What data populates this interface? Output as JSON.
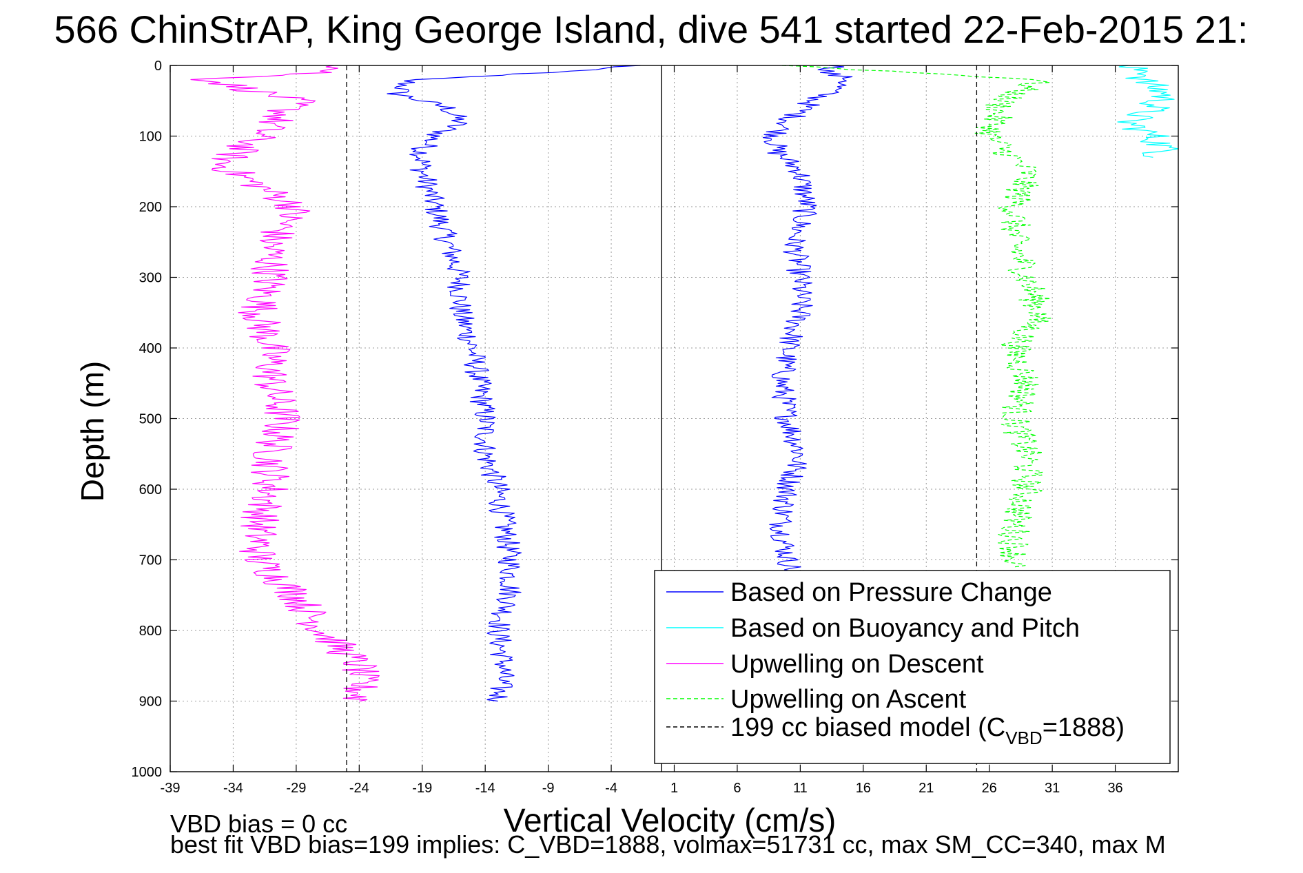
{
  "chart_data": {
    "type": "line",
    "title": "566 ChinStrAP, King George Island, dive 541 started 22-Feb-2015 21:",
    "xlabel": "Vertical Velocity (cm/s)",
    "ylabel": "Depth (m)",
    "xlim": [
      -39,
      41
    ],
    "ylim": [
      1000,
      0
    ],
    "y_reversed": true,
    "grid": true,
    "grid_style": "dotted",
    "x_ticks": [
      -39,
      -34,
      -29,
      -24,
      -19,
      -14,
      -9,
      -4,
      1,
      6,
      11,
      16,
      21,
      26,
      31,
      36
    ],
    "x_tick_labels": [
      "-39",
      "-34",
      "-29",
      "-24",
      "-19",
      "-14",
      "-9",
      "-4",
      "1",
      "6",
      "11",
      "16",
      "21",
      "26",
      "31",
      "36"
    ],
    "y_ticks": [
      0,
      100,
      200,
      300,
      400,
      500,
      600,
      700,
      800,
      900,
      1000
    ],
    "y_tick_labels": [
      "0",
      "100",
      "200",
      "300",
      "400",
      "500",
      "600",
      "700",
      "800",
      "900",
      "1000"
    ],
    "zero_line_x": 0,
    "legend": {
      "position": "bottom-right",
      "entries": [
        {
          "label": "Based on Pressure Change",
          "color": "#0000ff",
          "style": "solid"
        },
        {
          "label": "Based on Buoyancy and Pitch",
          "color": "#00ffff",
          "style": "solid"
        },
        {
          "label": "Upwelling on Descent",
          "color": "#ff00ff",
          "style": "solid"
        },
        {
          "label": "Upwelling on Ascent",
          "color": "#00ff00",
          "style": "dashed"
        },
        {
          "label_main": "199 cc biased model (C",
          "label_sub": "VBD",
          "label_tail": "=1888)",
          "color": "#000000",
          "style": "dashed"
        }
      ]
    },
    "series": [
      {
        "name": "Based on Pressure Change",
        "segment": "descent",
        "color": "#0000ff",
        "style": "solid",
        "depth": [
          0,
          10,
          20,
          40,
          60,
          80,
          100,
          120,
          150,
          200,
          250,
          300,
          350,
          400,
          450,
          500,
          550,
          600,
          650,
          700,
          750,
          800,
          850,
          900
        ],
        "x": [
          -2,
          -9,
          -20,
          -21,
          -17,
          -16,
          -18,
          -19,
          -19,
          -18,
          -17,
          -16,
          -16,
          -15,
          -14.5,
          -14,
          -14,
          -13,
          -12.5,
          -12,
          -12,
          -13,
          -12.5,
          -13
        ]
      },
      {
        "name": "Based on Pressure Change",
        "segment": "ascent",
        "color": "#0000ff",
        "style": "solid",
        "depth": [
          0,
          10,
          20,
          50,
          80,
          100,
          120,
          150,
          200,
          250,
          300,
          350,
          400,
          450,
          500,
          550,
          600,
          650,
          700,
          720
        ],
        "x": [
          14,
          13,
          15,
          12,
          10,
          9,
          9,
          11,
          11.5,
          10.5,
          11,
          11,
          10,
          9.5,
          10,
          11,
          10,
          9.5,
          10,
          10.5
        ]
      },
      {
        "name": "Based on Buoyancy and Pitch",
        "color": "#00ffff",
        "style": "solid",
        "depth": [
          0,
          10,
          20,
          40,
          60,
          80,
          100,
          120,
          130
        ],
        "x": [
          36,
          39,
          38,
          40,
          39,
          37,
          39,
          40,
          39
        ]
      },
      {
        "name": "Upwelling on Descent",
        "color": "#ff00ff",
        "style": "solid",
        "depth": [
          0,
          10,
          20,
          50,
          100,
          140,
          200,
          250,
          300,
          350,
          400,
          450,
          500,
          550,
          600,
          650,
          700,
          750,
          800,
          850,
          900
        ],
        "x": [
          -25,
          -27,
          -36,
          -29,
          -32,
          -35,
          -29,
          -31,
          -31,
          -32,
          -31,
          -31,
          -30,
          -31,
          -31,
          -32,
          -32,
          -29,
          -27,
          -24,
          -24
        ]
      },
      {
        "name": "Upwelling on Ascent",
        "color": "#00ff00",
        "style": "dashed",
        "depth": [
          0,
          20,
          50,
          100,
          150,
          200,
          250,
          300,
          350,
          400,
          450,
          500,
          550,
          600,
          650,
          700,
          710
        ],
        "x": [
          10,
          30,
          27,
          26,
          29,
          28,
          28,
          29,
          30,
          28,
          29,
          28,
          29,
          29,
          28,
          28,
          28
        ]
      },
      {
        "name": "199 cc biased model",
        "color": "#000000",
        "style": "dashed",
        "vertical_lines_x": [
          -25,
          25
        ]
      }
    ]
  },
  "footer": {
    "bias_text": "VBD bias = 0 cc",
    "fit_text": "best fit VBD bias=199 implies: C_VBD=1888, volmax=51731 cc, max SM_CC=340, max M"
  }
}
